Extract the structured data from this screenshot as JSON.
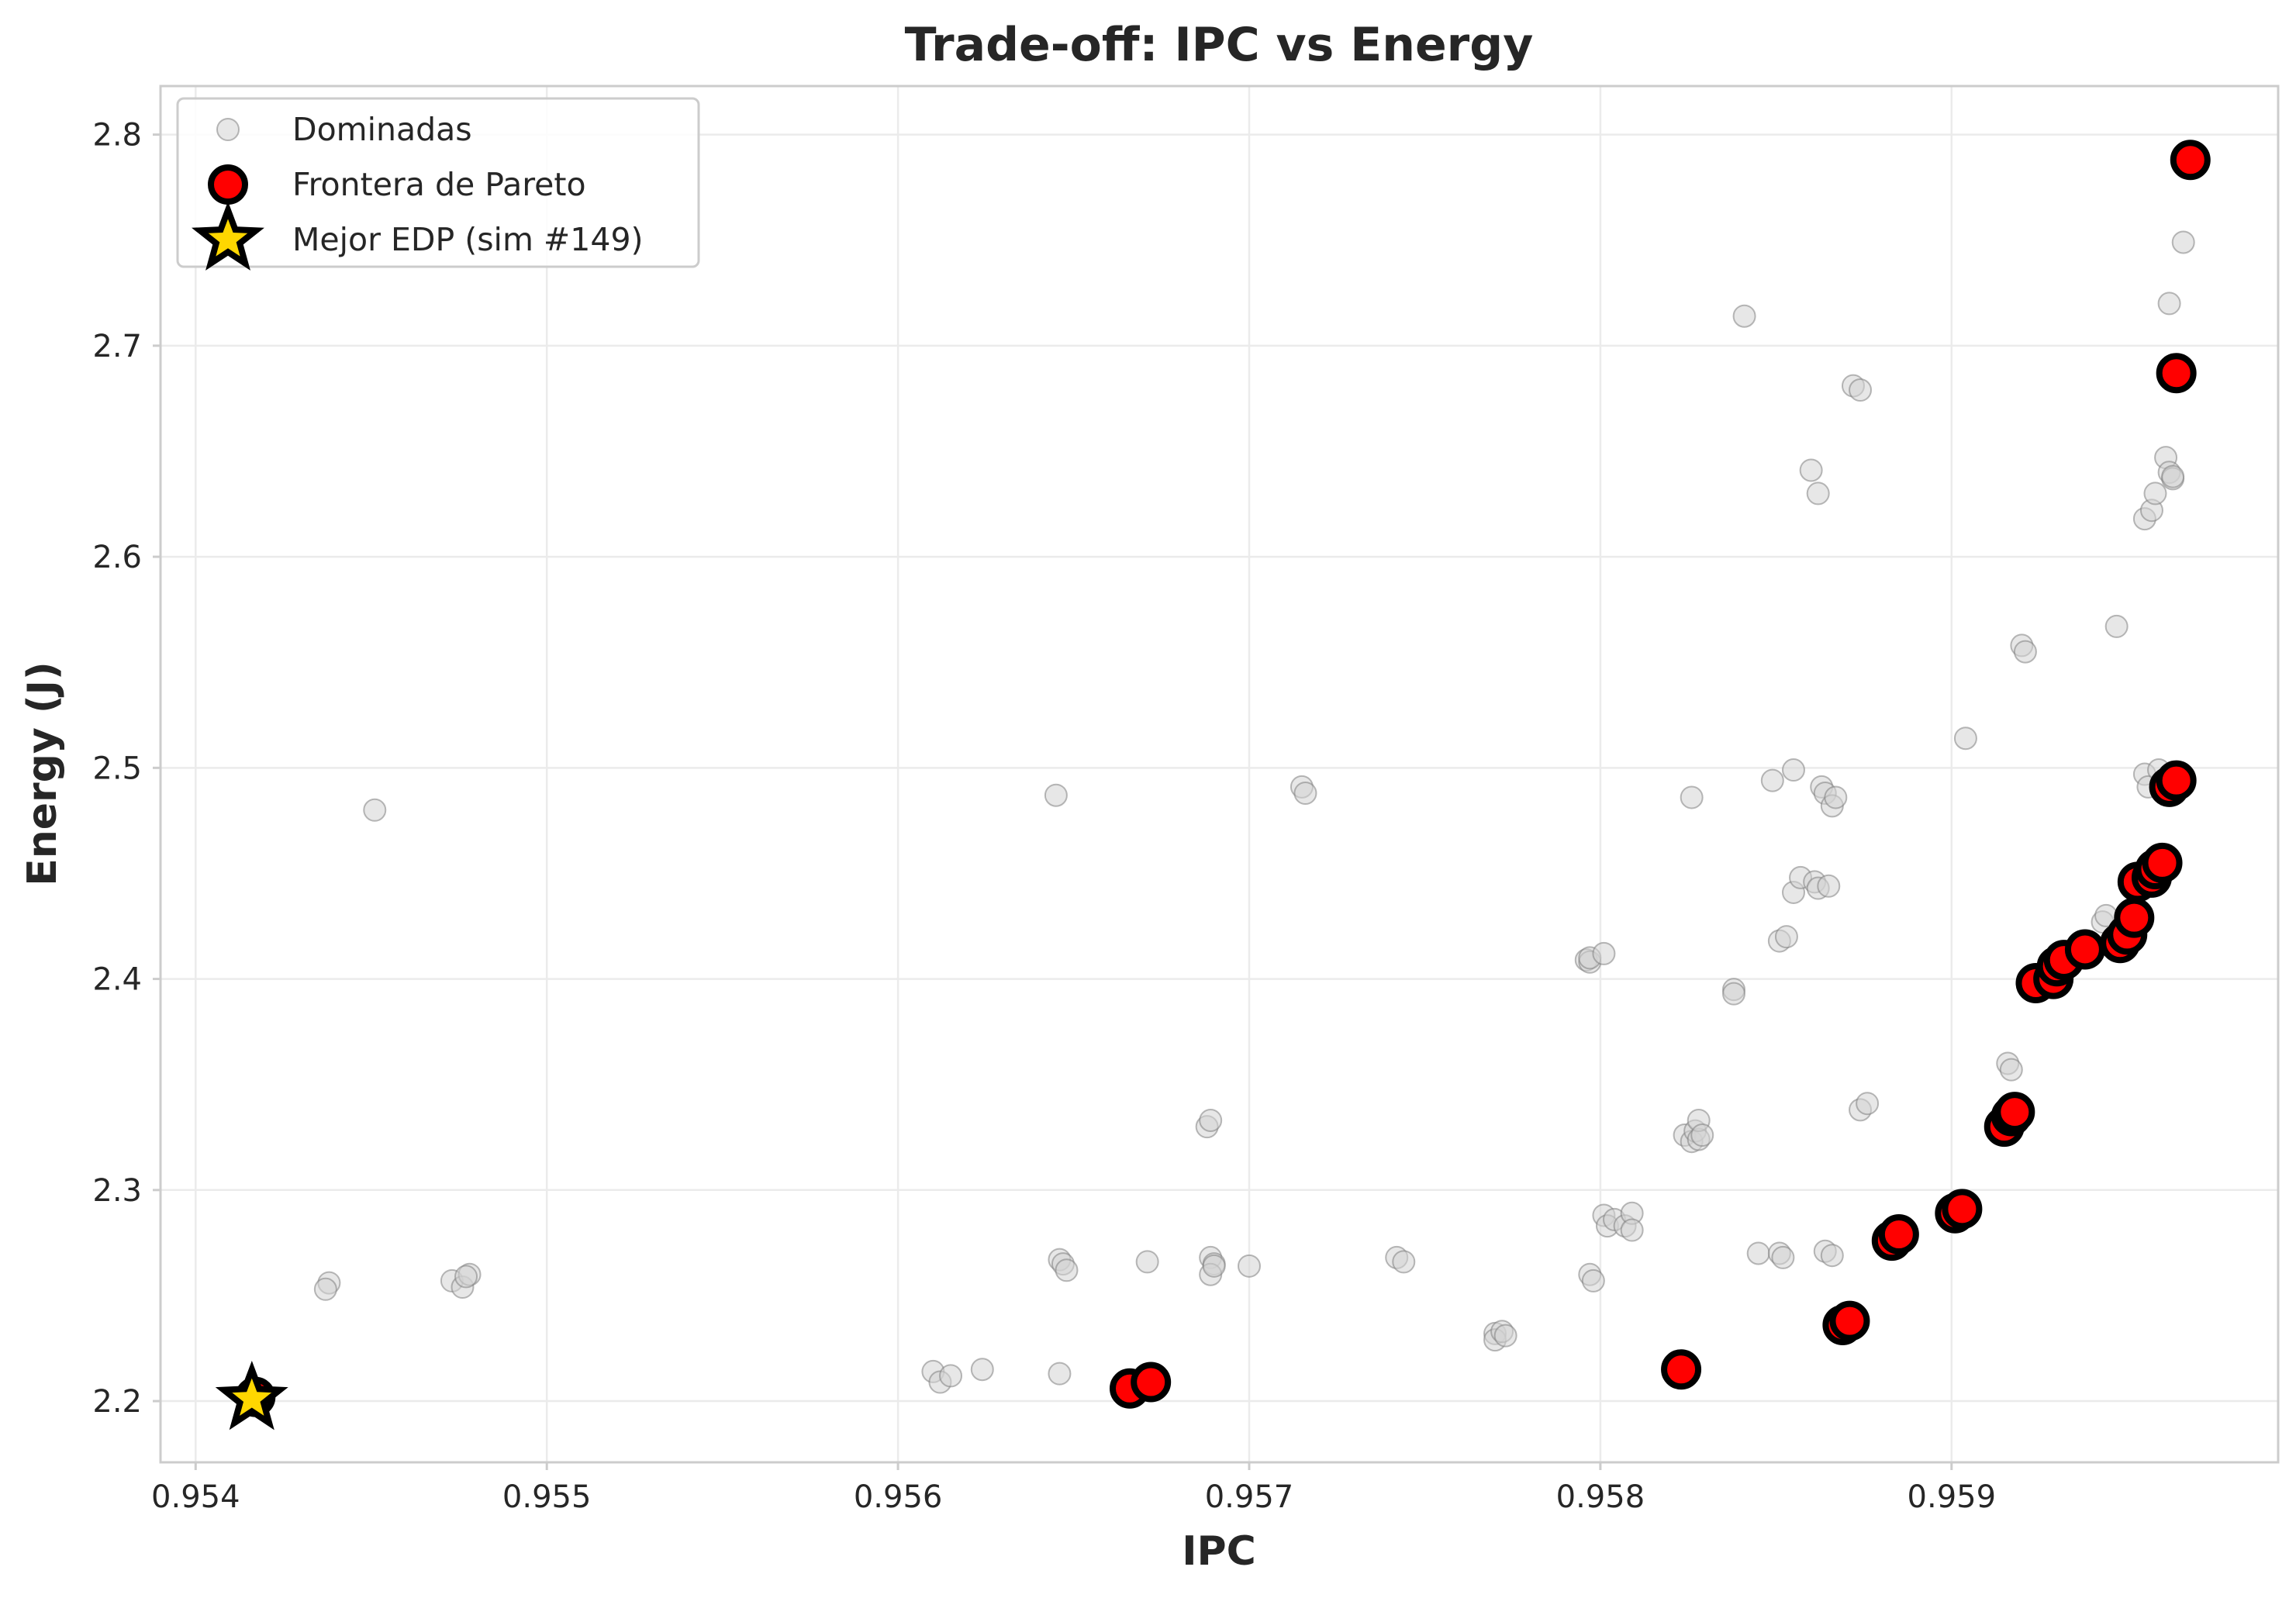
{
  "chart_data": {
    "type": "scatter",
    "title": "Trade-off: IPC vs Energy",
    "xlabel": "IPC",
    "ylabel": "Energy (J)",
    "xlim": [
      0.9539,
      0.95993
    ],
    "ylim": [
      2.171,
      2.823
    ],
    "xticks": [
      {
        "value": 0.954,
        "label": "0.954"
      },
      {
        "value": 0.955,
        "label": "0.955"
      },
      {
        "value": 0.956,
        "label": "0.956"
      },
      {
        "value": 0.957,
        "label": "0.957"
      },
      {
        "value": 0.958,
        "label": "0.958"
      },
      {
        "value": 0.959,
        "label": "0.959"
      }
    ],
    "yticks": [
      {
        "value": 2.2,
        "label": "2.2"
      },
      {
        "value": 2.3,
        "label": "2.3"
      },
      {
        "value": 2.4,
        "label": "2.4"
      },
      {
        "value": 2.5,
        "label": "2.5"
      },
      {
        "value": 2.6,
        "label": "2.6"
      },
      {
        "value": 2.7,
        "label": "2.7"
      },
      {
        "value": 2.8,
        "label": "2.8"
      }
    ],
    "grid": true,
    "legend_position": "top-left",
    "colors": {
      "dominated_fill": "#d3d3d3",
      "dominated_edge": "#808080",
      "pareto_fill": "#ff0000",
      "pareto_edge": "#000000",
      "best_fill": "#ffd700",
      "best_edge": "#000000"
    },
    "legend": [
      {
        "label": "Dominadas",
        "marker": "dominated"
      },
      {
        "label": "Frontera de Pareto",
        "marker": "pareto"
      },
      {
        "label": "Mejor EDP (sim #149)",
        "marker": "best"
      }
    ],
    "series": [
      {
        "name": "Dominadas",
        "points": [
          [
            0.95451,
            2.48
          ],
          [
            0.95438,
            2.256
          ],
          [
            0.95437,
            2.253
          ],
          [
            0.95473,
            2.257
          ],
          [
            0.95476,
            2.254
          ],
          [
            0.95478,
            2.26
          ],
          [
            0.95477,
            2.259
          ],
          [
            0.9561,
            2.214
          ],
          [
            0.95612,
            2.209
          ],
          [
            0.95615,
            2.212
          ],
          [
            0.95624,
            2.215
          ],
          [
            0.95645,
            2.487
          ],
          [
            0.95646,
            2.267
          ],
          [
            0.95647,
            2.265
          ],
          [
            0.95648,
            2.262
          ],
          [
            0.95646,
            2.213
          ],
          [
            0.95671,
            2.266
          ],
          [
            0.95688,
            2.33
          ],
          [
            0.95689,
            2.333
          ],
          [
            0.95689,
            2.268
          ],
          [
            0.9569,
            2.265
          ],
          [
            0.95689,
            2.26
          ],
          [
            0.9569,
            2.264
          ],
          [
            0.957,
            2.264
          ],
          [
            0.95715,
            2.491
          ],
          [
            0.95716,
            2.488
          ],
          [
            0.95742,
            2.268
          ],
          [
            0.95744,
            2.266
          ],
          [
            0.9577,
            2.232
          ],
          [
            0.9577,
            2.229
          ],
          [
            0.95772,
            2.233
          ],
          [
            0.95773,
            2.231
          ],
          [
            0.95796,
            2.409
          ],
          [
            0.95797,
            2.408
          ],
          [
            0.95797,
            2.41
          ],
          [
            0.95801,
            2.412
          ],
          [
            0.95797,
            2.26
          ],
          [
            0.95798,
            2.257
          ],
          [
            0.95801,
            2.288
          ],
          [
            0.95802,
            2.283
          ],
          [
            0.95804,
            2.286
          ],
          [
            0.95807,
            2.283
          ],
          [
            0.95809,
            2.289
          ],
          [
            0.95809,
            2.281
          ],
          [
            0.95824,
            2.326
          ],
          [
            0.95826,
            2.323
          ],
          [
            0.95826,
            2.486
          ],
          [
            0.95827,
            2.328
          ],
          [
            0.95828,
            2.324
          ],
          [
            0.95828,
            2.333
          ],
          [
            0.95829,
            2.326
          ],
          [
            0.95838,
            2.395
          ],
          [
            0.95838,
            2.393
          ],
          [
            0.95841,
            2.714
          ],
          [
            0.95845,
            2.27
          ],
          [
            0.95849,
            2.494
          ],
          [
            0.95851,
            2.27
          ],
          [
            0.95852,
            2.268
          ],
          [
            0.95851,
            2.418
          ],
          [
            0.95853,
            2.42
          ],
          [
            0.95855,
            2.499
          ],
          [
            0.95855,
            2.441
          ],
          [
            0.95857,
            2.448
          ],
          [
            0.9586,
            2.641
          ],
          [
            0.95861,
            2.446
          ],
          [
            0.95862,
            2.443
          ],
          [
            0.95862,
            2.63
          ],
          [
            0.95863,
            2.491
          ],
          [
            0.95864,
            2.488
          ],
          [
            0.95865,
            2.444
          ],
          [
            0.95864,
            2.271
          ],
          [
            0.95866,
            2.269
          ],
          [
            0.95866,
            2.482
          ],
          [
            0.95867,
            2.486
          ],
          [
            0.95872,
            2.681
          ],
          [
            0.95874,
            2.679
          ],
          [
            0.95874,
            2.338
          ],
          [
            0.95876,
            2.341
          ],
          [
            0.95904,
            2.514
          ],
          [
            0.95916,
            2.36
          ],
          [
            0.95917,
            2.357
          ],
          [
            0.9592,
            2.558
          ],
          [
            0.95921,
            2.555
          ],
          [
            0.95943,
            2.427
          ],
          [
            0.95944,
            2.43
          ],
          [
            0.95947,
            2.567
          ],
          [
            0.95955,
            2.618
          ],
          [
            0.95955,
            2.497
          ],
          [
            0.95956,
            2.491
          ],
          [
            0.95957,
            2.622
          ],
          [
            0.95958,
            2.63
          ],
          [
            0.95959,
            2.499
          ],
          [
            0.9596,
            2.493
          ],
          [
            0.95961,
            2.647
          ],
          [
            0.95962,
            2.72
          ],
          [
            0.95962,
            2.64
          ],
          [
            0.95963,
            2.637
          ],
          [
            0.95963,
            2.638
          ],
          [
            0.95964,
            2.496
          ],
          [
            0.95966,
            2.749
          ]
        ]
      },
      {
        "name": "Frontera de Pareto",
        "points": [
          [
            0.95417,
            2.202
          ],
          [
            0.95666,
            2.206
          ],
          [
            0.95672,
            2.209
          ],
          [
            0.95823,
            2.215
          ],
          [
            0.95869,
            2.236
          ],
          [
            0.95871,
            2.238
          ],
          [
            0.95883,
            2.276
          ],
          [
            0.95885,
            2.279
          ],
          [
            0.95901,
            2.289
          ],
          [
            0.95903,
            2.291
          ],
          [
            0.95915,
            2.33
          ],
          [
            0.95917,
            2.335
          ],
          [
            0.95918,
            2.337
          ],
          [
            0.95924,
            2.398
          ],
          [
            0.95929,
            2.4
          ],
          [
            0.9593,
            2.406
          ],
          [
            0.95932,
            2.409
          ],
          [
            0.95938,
            2.414
          ],
          [
            0.95948,
            2.417
          ],
          [
            0.9595,
            2.421
          ],
          [
            0.95952,
            2.429
          ],
          [
            0.95953,
            2.446
          ],
          [
            0.95957,
            2.448
          ],
          [
            0.95958,
            2.452
          ],
          [
            0.9596,
            2.455
          ],
          [
            0.95962,
            2.491
          ],
          [
            0.95964,
            2.494
          ],
          [
            0.95964,
            2.687
          ],
          [
            0.95968,
            2.788
          ]
        ]
      },
      {
        "name": "Mejor EDP (sim #149)",
        "points": [
          [
            0.95416,
            2.201
          ]
        ]
      }
    ]
  }
}
